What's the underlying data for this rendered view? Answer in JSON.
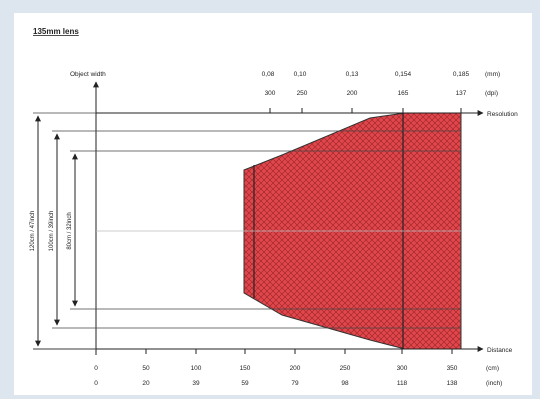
{
  "title": "135mm lens",
  "object_width_label": "Object width",
  "resolution_axis": {
    "label": "Resolution",
    "mm_values": [
      "0,08",
      "0,10",
      "0,13",
      "0,154",
      "0,185"
    ],
    "mm_unit": "(mm)",
    "dpi_values": [
      "300",
      "250",
      "200",
      "165",
      "137"
    ],
    "dpi_unit": "(dpi)"
  },
  "distance_axis": {
    "label": "Distance",
    "cm_values": [
      "0",
      "50",
      "100",
      "150",
      "200",
      "250",
      "300",
      "350"
    ],
    "cm_unit": "(cm)",
    "inch_values": [
      "0",
      "20",
      "39",
      "59",
      "79",
      "98",
      "118",
      "138"
    ],
    "inch_unit": "(inch)"
  },
  "widths": {
    "outer": "120cm / 47inch",
    "middle": "100cm / 39inch",
    "inner": "80cm / 32inch"
  },
  "colors": {
    "fill": "#e0474c",
    "hatch": "#9a2226",
    "line": "#222222",
    "background": "#dde6ef"
  }
}
